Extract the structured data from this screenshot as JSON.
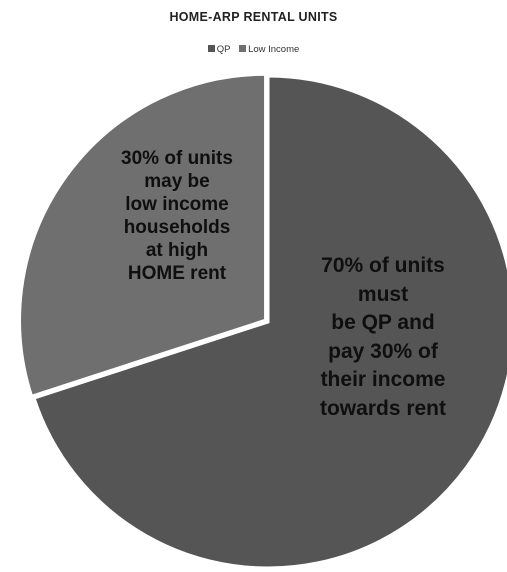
{
  "chart_data": {
    "type": "pie",
    "title": "HOME-ARP RENTAL UNITS",
    "legend_position": "top",
    "categories": [
      "QP",
      "Low Income"
    ],
    "values": [
      70,
      30
    ],
    "colors": [
      "#555555",
      "#6f6f6f"
    ],
    "slice_labels": [
      [
        "70% of units",
        "must",
        "be QP and",
        "pay 30% of",
        "their income",
        "towards rent"
      ],
      [
        "30% of units",
        "may be",
        "low income",
        "households",
        "at high",
        "HOME rent"
      ]
    ]
  }
}
